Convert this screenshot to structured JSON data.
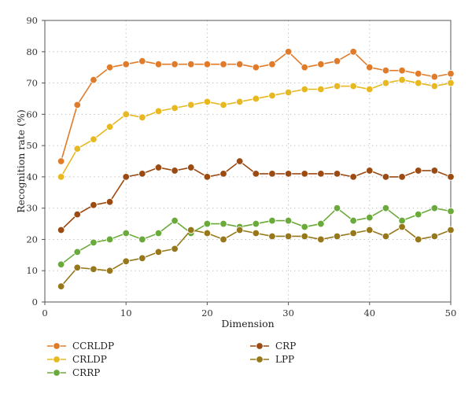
{
  "chart_data": {
    "type": "line",
    "title": "",
    "xlabel": "Dimension",
    "ylabel": "Recognition rate (%)",
    "xlim": [
      0,
      50
    ],
    "ylim": [
      0,
      90
    ],
    "xticks": [
      0,
      10,
      20,
      30,
      40,
      50
    ],
    "yticks": [
      0,
      10,
      20,
      30,
      40,
      50,
      60,
      70,
      80,
      90
    ],
    "grid": true,
    "legend_position": "bottom",
    "x": [
      2,
      4,
      6,
      8,
      10,
      12,
      14,
      16,
      18,
      20,
      22,
      24,
      26,
      28,
      30,
      32,
      34,
      36,
      38,
      40,
      42,
      44,
      46,
      48,
      50
    ],
    "series": [
      {
        "name": "CCRLDP",
        "color": "#e07b2a",
        "values": [
          45,
          63,
          71,
          75,
          76,
          77,
          76,
          76,
          76,
          76,
          76,
          76,
          75,
          76,
          80,
          75,
          76,
          77,
          80,
          75,
          74,
          74,
          73,
          72,
          73
        ]
      },
      {
        "name": "CRLDP",
        "color": "#e8b820",
        "values": [
          40,
          49,
          52,
          56,
          60,
          59,
          61,
          62,
          63,
          64,
          63,
          64,
          65,
          66,
          67,
          68,
          68,
          69,
          69,
          68,
          70,
          71,
          70,
          69,
          70
        ]
      },
      {
        "name": "CRRP",
        "color": "#6aaa3a",
        "values": [
          12,
          16,
          19,
          20,
          22,
          20,
          22,
          26,
          22,
          25,
          25,
          24,
          25,
          26,
          26,
          24,
          25,
          30,
          26,
          27,
          30,
          26,
          28,
          30,
          29
        ]
      },
      {
        "name": "CRP",
        "color": "#9b4a12",
        "values": [
          23,
          28,
          31,
          32,
          40,
          41,
          43,
          42,
          43,
          40,
          41,
          45,
          41,
          41,
          41,
          41,
          41,
          41,
          40,
          42,
          40,
          40,
          42,
          42,
          40
        ]
      },
      {
        "name": "LPP",
        "color": "#96781a",
        "values": [
          5,
          11,
          10.5,
          10,
          13,
          14,
          16,
          17,
          23,
          22,
          20,
          23,
          22,
          21,
          21,
          21,
          20,
          21,
          22,
          23,
          21,
          24,
          20,
          21,
          23
        ]
      }
    ]
  }
}
